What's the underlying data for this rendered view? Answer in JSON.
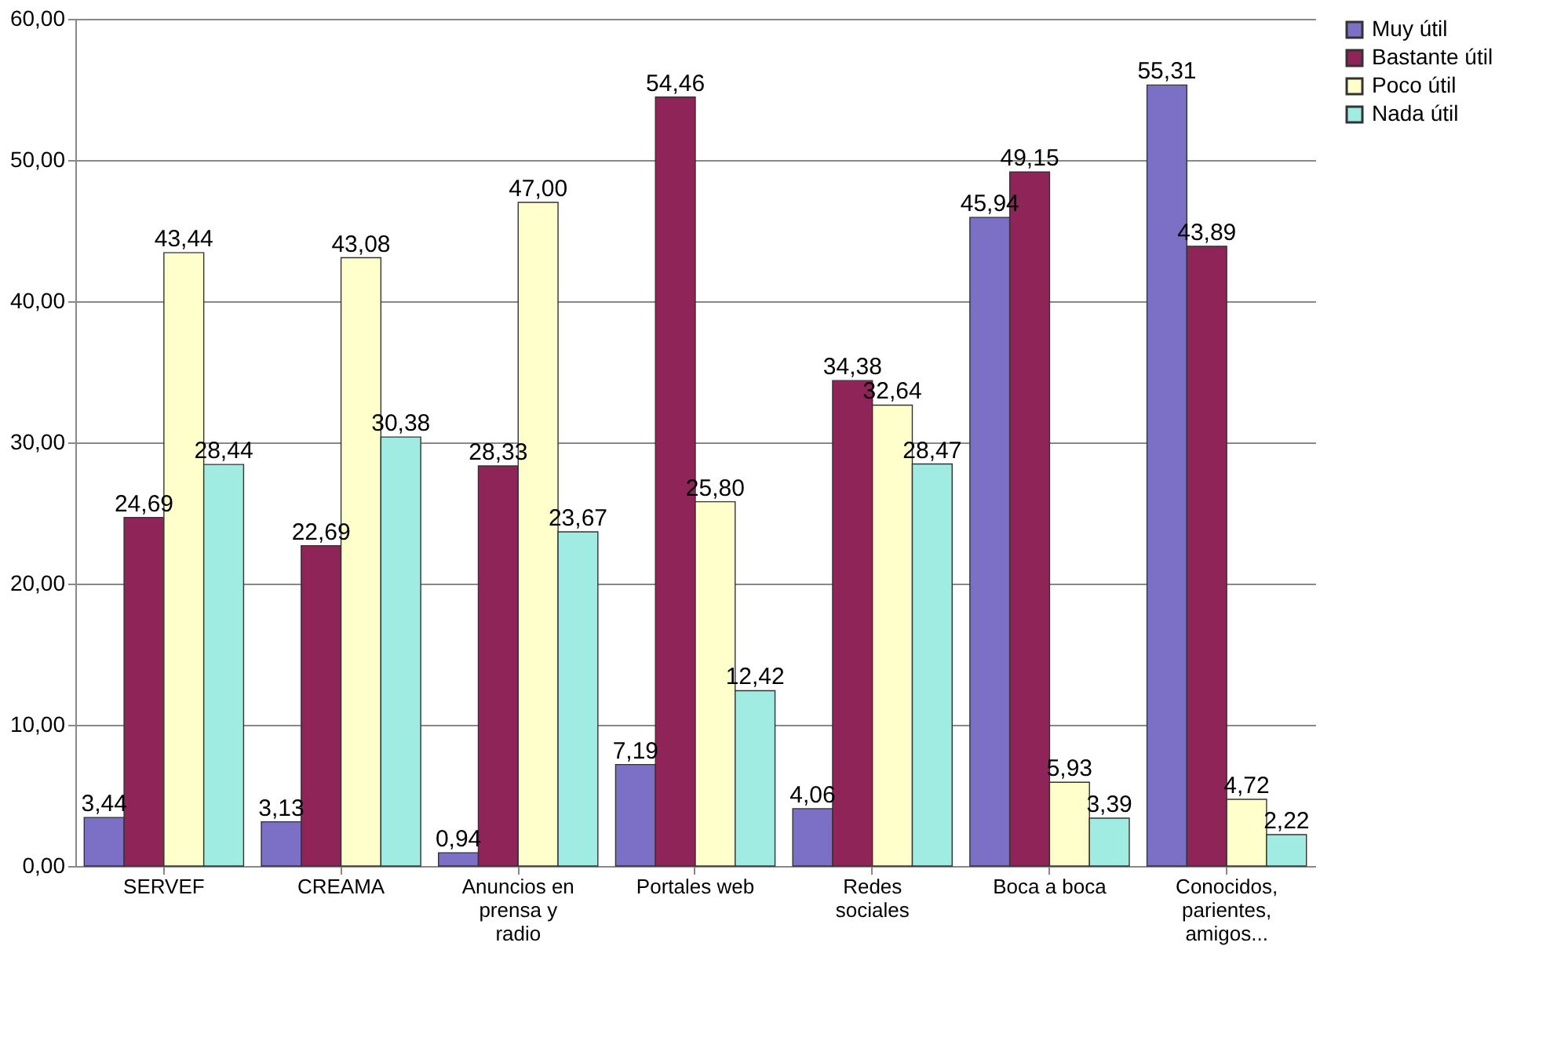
{
  "chart_data": {
    "type": "bar",
    "categories": [
      "SERVEF",
      "CREAMA",
      "Anuncios en prensa y radio",
      "Portales web",
      "Redes sociales",
      "Boca a boca",
      "Conocidos, parientes, amigos..."
    ],
    "series": [
      {
        "name": "Muy útil",
        "color": "#7b6fc6",
        "values": [
          3.44,
          3.13,
          0.94,
          7.19,
          4.06,
          45.94,
          55.31
        ],
        "value_labels": [
          "3,44",
          "3,13",
          "0,94",
          "7,19",
          "4,06",
          "45,94",
          "55,31"
        ]
      },
      {
        "name": "Bastante útil",
        "color": "#8e2457",
        "values": [
          24.69,
          22.69,
          28.33,
          54.46,
          34.38,
          49.15,
          43.89
        ],
        "value_labels": [
          "24,69",
          "22,69",
          "28,33",
          "54,46",
          "34,38",
          "49,15",
          "43,89"
        ]
      },
      {
        "name": "Poco útil",
        "color": "#ffffcc",
        "values": [
          43.44,
          43.08,
          47.0,
          25.8,
          32.64,
          5.93,
          4.72
        ],
        "value_labels": [
          "43,44",
          "43,08",
          "47,00",
          "25,80",
          "32,64",
          "5,93",
          "4,72"
        ]
      },
      {
        "name": "Nada útil",
        "color": "#a0ece2",
        "values": [
          28.44,
          30.38,
          23.67,
          12.42,
          28.47,
          3.39,
          2.22
        ],
        "value_labels": [
          "28,44",
          "30,38",
          "23,67",
          "12,42",
          "28,47",
          "3,39",
          "2,22"
        ]
      }
    ],
    "ylim": [
      0,
      60
    ],
    "yticks": [
      {
        "value": 0,
        "label": "0,00"
      },
      {
        "value": 10,
        "label": "10,00"
      },
      {
        "value": 20,
        "label": "20,00"
      },
      {
        "value": 30,
        "label": "30,00"
      },
      {
        "value": 40,
        "label": "40,00"
      },
      {
        "value": 50,
        "label": "50,00"
      },
      {
        "value": 60,
        "label": "60,00"
      }
    ],
    "grid": "y",
    "legend": "right"
  }
}
